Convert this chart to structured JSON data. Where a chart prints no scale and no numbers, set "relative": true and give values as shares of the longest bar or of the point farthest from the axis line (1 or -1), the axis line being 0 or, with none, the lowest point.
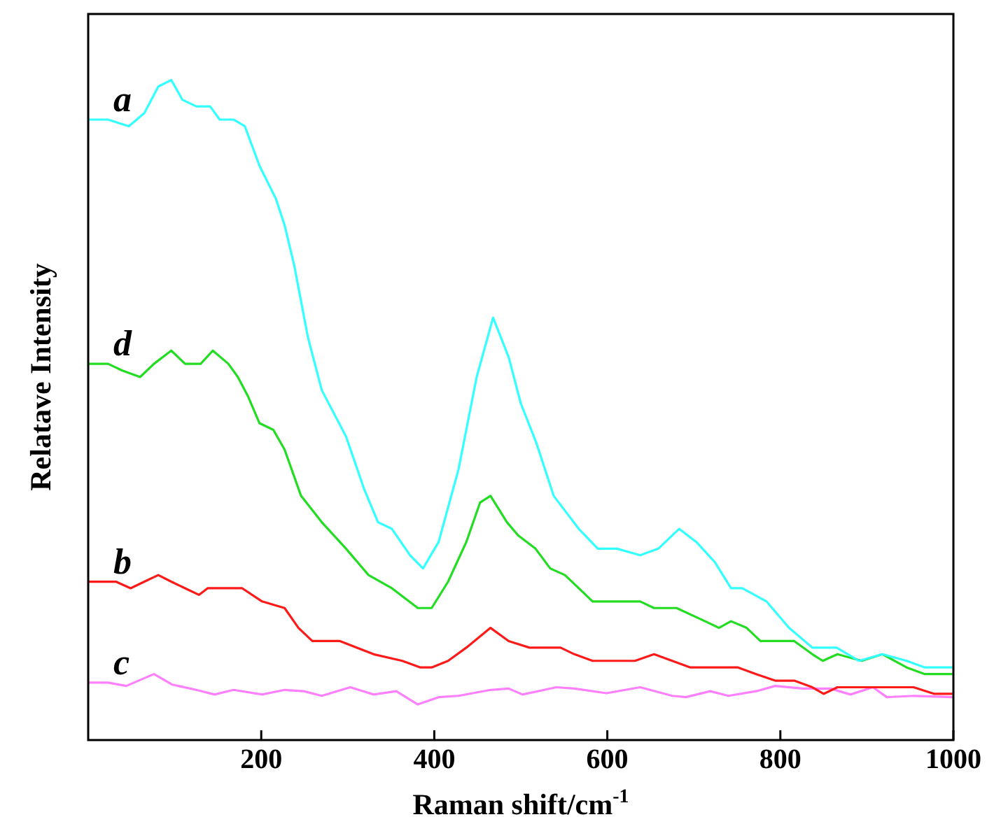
{
  "chart_data": {
    "type": "line",
    "relative": true,
    "xlabel": "Raman shift/cm$^{-1}$",
    "ylabel": "Relatave Intensity",
    "xlim": [
      0,
      1000
    ],
    "xticks": [
      200,
      400,
      600,
      800,
      1000
    ],
    "legend": false,
    "grid": false,
    "marker": "none",
    "line_style": "solid",
    "series": [
      {
        "name": "a",
        "color": "#33ffff",
        "x": [
          0,
          23,
          47,
          65,
          81,
          96,
          109,
          125,
          136,
          141,
          152,
          168,
          181,
          198,
          217,
          227,
          238,
          254,
          270,
          298,
          319,
          335,
          351,
          372,
          387,
          405,
          428,
          449,
          468,
          486,
          500,
          518,
          538,
          567,
          589,
          611,
          638,
          659,
          683,
          703,
          724,
          743,
          756,
          784,
          810,
          837,
          865,
          891,
          918,
          946,
          967,
          999
        ],
        "values": [
          0.94,
          0.94,
          0.93,
          0.95,
          0.99,
          1.0,
          0.97,
          0.96,
          0.96,
          0.96,
          0.94,
          0.94,
          0.93,
          0.87,
          0.82,
          0.78,
          0.72,
          0.61,
          0.53,
          0.46,
          0.38,
          0.33,
          0.32,
          0.28,
          0.26,
          0.3,
          0.41,
          0.55,
          0.64,
          0.58,
          0.51,
          0.45,
          0.37,
          0.32,
          0.29,
          0.29,
          0.28,
          0.29,
          0.32,
          0.3,
          0.27,
          0.23,
          0.23,
          0.21,
          0.17,
          0.14,
          0.14,
          0.12,
          0.13,
          0.12,
          0.11,
          0.11
        ]
      },
      {
        "name": "b",
        "color": "#ff1a1a",
        "x": [
          0,
          32,
          49,
          65,
          81,
          96,
          112,
          128,
          138,
          178,
          201,
          227,
          243,
          259,
          291,
          330,
          363,
          384,
          397,
          416,
          437,
          465,
          486,
          510,
          546,
          562,
          583,
          611,
          632,
          654,
          675,
          696,
          729,
          751,
          772,
          794,
          816,
          837,
          850,
          866,
          891,
          913,
          934,
          954,
          978,
          999
        ],
        "values": [
          0.24,
          0.24,
          0.23,
          0.24,
          0.25,
          0.24,
          0.23,
          0.22,
          0.23,
          0.23,
          0.21,
          0.2,
          0.17,
          0.15,
          0.15,
          0.13,
          0.12,
          0.11,
          0.11,
          0.12,
          0.14,
          0.17,
          0.15,
          0.14,
          0.14,
          0.13,
          0.12,
          0.12,
          0.12,
          0.13,
          0.12,
          0.11,
          0.11,
          0.11,
          0.1,
          0.09,
          0.09,
          0.08,
          0.07,
          0.08,
          0.08,
          0.08,
          0.08,
          0.08,
          0.07,
          0.07
        ]
      },
      {
        "name": "c",
        "color": "#ff80ff",
        "x": [
          0,
          23,
          44,
          76,
          97,
          125,
          146,
          168,
          201,
          227,
          249,
          270,
          303,
          330,
          356,
          381,
          405,
          428,
          465,
          486,
          502,
          541,
          562,
          599,
          638,
          675,
          691,
          719,
          740,
          772,
          794,
          826,
          858,
          881,
          907,
          923,
          955,
          999
        ],
        "values": [
          0.087,
          0.087,
          0.082,
          0.1,
          0.084,
          0.076,
          0.069,
          0.076,
          0.069,
          0.076,
          0.074,
          0.067,
          0.08,
          0.069,
          0.074,
          0.054,
          0.065,
          0.067,
          0.076,
          0.078,
          0.069,
          0.08,
          0.078,
          0.071,
          0.08,
          0.067,
          0.065,
          0.074,
          0.067,
          0.074,
          0.082,
          0.078,
          0.078,
          0.069,
          0.08,
          0.065,
          0.067,
          0.065
        ]
      },
      {
        "name": "d",
        "color": "#22dd22",
        "x": [
          0,
          23,
          39,
          60,
          76,
          96,
          112,
          130,
          144,
          162,
          173,
          185,
          198,
          214,
          227,
          246,
          270,
          298,
          324,
          351,
          381,
          397,
          416,
          437,
          453,
          465,
          484,
          497,
          517,
          534,
          551,
          567,
          583,
          611,
          638,
          654,
          680,
          713,
          729,
          743,
          761,
          777,
          800,
          816,
          837,
          849,
          866,
          894,
          918,
          946,
          967,
          999
        ],
        "values": [
          0.57,
          0.57,
          0.56,
          0.55,
          0.57,
          0.59,
          0.57,
          0.57,
          0.59,
          0.57,
          0.55,
          0.52,
          0.48,
          0.47,
          0.44,
          0.37,
          0.33,
          0.29,
          0.25,
          0.23,
          0.2,
          0.2,
          0.24,
          0.3,
          0.36,
          0.37,
          0.33,
          0.31,
          0.29,
          0.26,
          0.25,
          0.23,
          0.21,
          0.21,
          0.21,
          0.2,
          0.2,
          0.18,
          0.17,
          0.18,
          0.17,
          0.15,
          0.15,
          0.15,
          0.13,
          0.12,
          0.13,
          0.12,
          0.13,
          0.11,
          0.1,
          0.1
        ]
      }
    ]
  }
}
